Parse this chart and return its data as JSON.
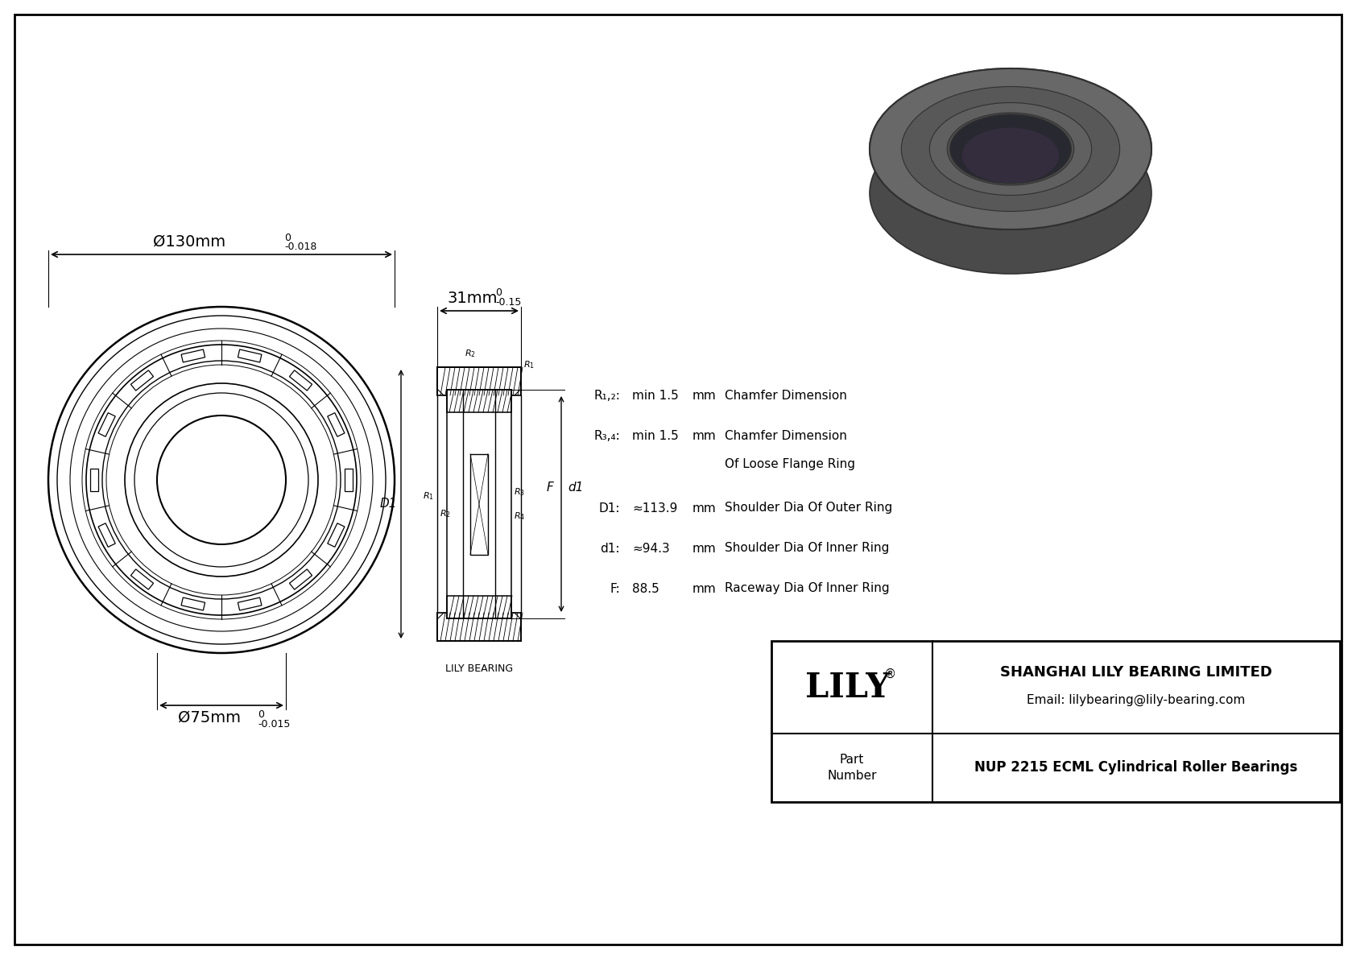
{
  "bg_color": "#ffffff",
  "border_color": "#000000",
  "line_color": "#000000",
  "company_name": "SHANGHAI LILY BEARING LIMITED",
  "email": "Email: lilybearing@lily-bearing.com",
  "brand": "LILY",
  "part_label": "Part\nNumber",
  "part_number": "NUP 2215 ECML Cylindrical Roller Bearings",
  "watermark": "LILY BEARING",
  "dim_outer": "Ø130mm",
  "dim_inner": "Ø75mm",
  "dim_width": "31mm",
  "specs": [
    {
      "label": "R₁,₂:",
      "value": "min 1.5",
      "unit": "mm",
      "desc": "Chamfer Dimension"
    },
    {
      "label": "R₃,₄:",
      "value": "min 1.5",
      "unit": "mm",
      "desc": "Chamfer Dimension"
    },
    {
      "label": "",
      "value": "",
      "unit": "",
      "desc": "Of Loose Flange Ring"
    },
    {
      "label": "D1:",
      "value": "≈113.9",
      "unit": "mm",
      "desc": "Shoulder Dia Of Outer Ring"
    },
    {
      "label": "d1:",
      "value": "≈94.3",
      "unit": "mm",
      "desc": "Shoulder Dia Of Inner Ring"
    },
    {
      "label": "F:",
      "value": "88.5",
      "unit": "mm",
      "desc": "Raceway Dia Of Inner Ring"
    }
  ]
}
